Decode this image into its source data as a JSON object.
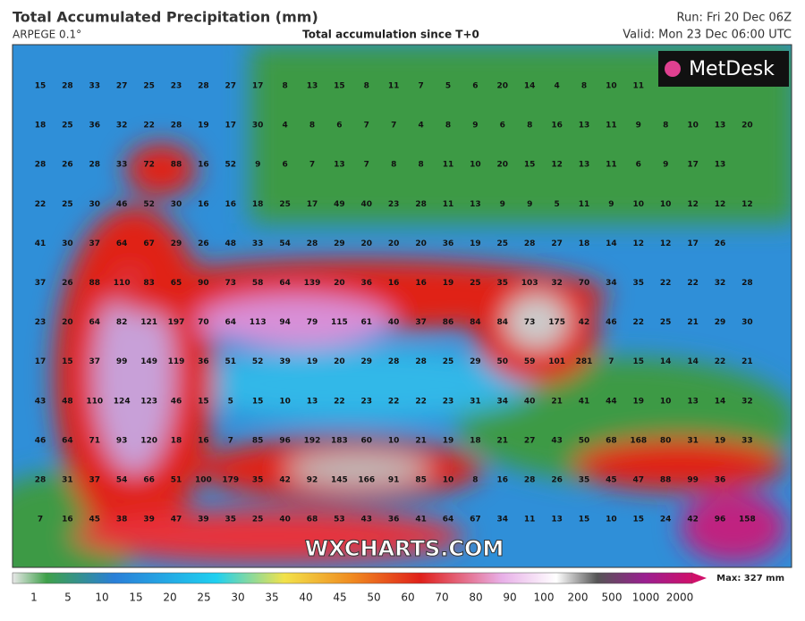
{
  "header": {
    "title": "Total Accumulated Precipitation (mm)",
    "model": "ARPEGE 0.1°",
    "subtitle": "Total accumulation since T+0",
    "run": "Run: Fri 20 Dec 06Z",
    "valid": "Valid: Mon 23 Dec 06:00 UTC"
  },
  "logo": "MetDesk",
  "watermark": "WXCHARTS.COM",
  "grid_values": [
    [
      15,
      28,
      33,
      27,
      25,
      23,
      28,
      27,
      17,
      8,
      13,
      15,
      8,
      11,
      7,
      5,
      6,
      20,
      14,
      4,
      8,
      10,
      11
    ],
    [
      18,
      25,
      36,
      32,
      22,
      28,
      19,
      17,
      30,
      4,
      8,
      6,
      7,
      7,
      4,
      8,
      9,
      6,
      8,
      16,
      13,
      11,
      9,
      8,
      10,
      13,
      20
    ],
    [
      28,
      26,
      28,
      33,
      72,
      88,
      16,
      52,
      9,
      6,
      7,
      13,
      7,
      8,
      8,
      11,
      10,
      20,
      15,
      12,
      13,
      11,
      6,
      9,
      17,
      13
    ],
    [
      22,
      25,
      30,
      46,
      52,
      30,
      16,
      16,
      18,
      25,
      17,
      49,
      40,
      23,
      28,
      11,
      13,
      9,
      9,
      5,
      11,
      9,
      10,
      10,
      12,
      12,
      12
    ],
    [
      41,
      30,
      37,
      64,
      67,
      29,
      26,
      48,
      33,
      54,
      28,
      29,
      20,
      20,
      20,
      36,
      19,
      25,
      28,
      27,
      18,
      14,
      12,
      12,
      17,
      26
    ],
    [
      37,
      26,
      88,
      110,
      83,
      65,
      90,
      73,
      58,
      64,
      139,
      20,
      36,
      16,
      16,
      19,
      25,
      35,
      103,
      32,
      70,
      34,
      35,
      22,
      22,
      32,
      28
    ],
    [
      23,
      20,
      64,
      82,
      121,
      197,
      70,
      64,
      113,
      94,
      79,
      115,
      61,
      40,
      37,
      86,
      84,
      84,
      73,
      175,
      42,
      46,
      22,
      25,
      21,
      29,
      30
    ],
    [
      17,
      15,
      37,
      99,
      149,
      119,
      36,
      51,
      52,
      39,
      19,
      20,
      29,
      28,
      28,
      25,
      29,
      50,
      59,
      101,
      281,
      7,
      15,
      14,
      14,
      22,
      21
    ],
    [
      43,
      48,
      110,
      124,
      123,
      46,
      15,
      5,
      15,
      10,
      13,
      22,
      23,
      22,
      22,
      23,
      31,
      34,
      40,
      21,
      41,
      44,
      19,
      10,
      13,
      14,
      32
    ],
    [
      46,
      64,
      71,
      93,
      120,
      18,
      16,
      7,
      85,
      96,
      192,
      183,
      60,
      10,
      21,
      19,
      18,
      21,
      27,
      43,
      50,
      68,
      168,
      80,
      31,
      19,
      33
    ],
    [
      28,
      31,
      37,
      54,
      66,
      51,
      100,
      179,
      35,
      42,
      92,
      145,
      166,
      91,
      85,
      10,
      8,
      16,
      28,
      26,
      35,
      45,
      47,
      88,
      99,
      36
    ],
    [
      7,
      16,
      45,
      38,
      39,
      47,
      39,
      35,
      25,
      40,
      68,
      53,
      43,
      36,
      41,
      64,
      67,
      34,
      11,
      13,
      15,
      10,
      15,
      24,
      42,
      96,
      158
    ]
  ],
  "legend": {
    "ticks": [
      1,
      5,
      10,
      15,
      20,
      25,
      30,
      35,
      40,
      45,
      50,
      60,
      70,
      80,
      90,
      100,
      200,
      500,
      1000,
      2000
    ],
    "max": "Max: 327 mm"
  }
}
